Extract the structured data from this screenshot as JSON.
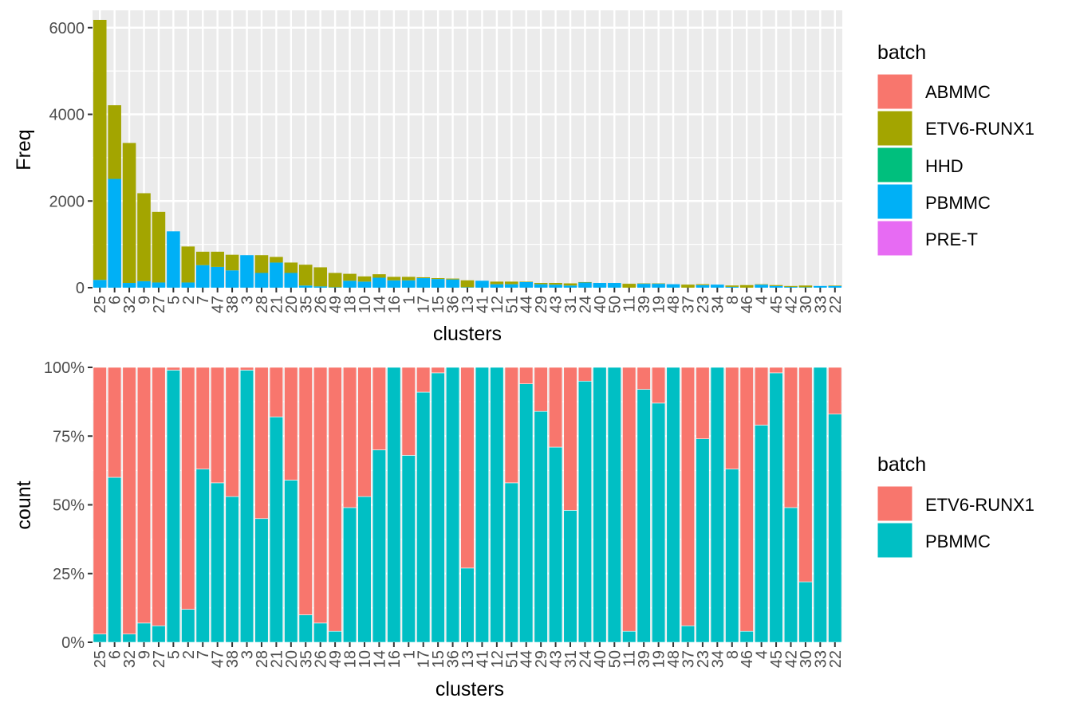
{
  "chart_data": [
    {
      "type": "bar",
      "stacked": true,
      "position": "stack",
      "xlabel": "clusters",
      "ylabel": "Freq",
      "ylim": [
        0,
        6400
      ],
      "yticks": [
        0,
        2000,
        4000,
        6000
      ],
      "yticklabels": [
        "0",
        "2000",
        "4000",
        "6000"
      ],
      "grid": true,
      "legend_placement": "right",
      "legend_title": "batch",
      "legend": [
        "ABMMC",
        "ETV6-RUNX1",
        "HHD",
        "PBMMC",
        "PRE-T"
      ],
      "colors": {
        "ABMMC": "#F8766D",
        "ETV6-RUNX1": "#A3A500",
        "HHD": "#00BF7D",
        "PBMMC": "#00B0F6",
        "PRE-T": "#E76BF3"
      },
      "categories": [
        "25",
        "6",
        "32",
        "9",
        "27",
        "5",
        "2",
        "7",
        "47",
        "38",
        "3",
        "28",
        "21",
        "20",
        "35",
        "26",
        "49",
        "18",
        "10",
        "14",
        "16",
        "1",
        "17",
        "15",
        "36",
        "13",
        "41",
        "12",
        "51",
        "44",
        "29",
        "43",
        "31",
        "24",
        "40",
        "50",
        "11",
        "39",
        "19",
        "48",
        "37",
        "23",
        "34",
        "8",
        "46",
        "4",
        "45",
        "42",
        "30",
        "33",
        "22"
      ],
      "series": [
        {
          "name": "ETV6-RUNX1",
          "values": [
            6000,
            1700,
            3230,
            2030,
            1630,
            0,
            830,
            310,
            350,
            360,
            0,
            410,
            130,
            240,
            480,
            440,
            330,
            160,
            120,
            80,
            80,
            80,
            20,
            20,
            20,
            160,
            0,
            60,
            60,
            10,
            30,
            40,
            50,
            10,
            0,
            0,
            90,
            10,
            10,
            0,
            70,
            20,
            0,
            30,
            60,
            10,
            20,
            20,
            40,
            0,
            10
          ]
        },
        {
          "name": "PBMMC",
          "values": [
            180,
            2510,
            110,
            150,
            120,
            1300,
            120,
            520,
            480,
            400,
            750,
            340,
            580,
            340,
            50,
            30,
            10,
            160,
            140,
            230,
            170,
            170,
            220,
            200,
            190,
            10,
            160,
            80,
            80,
            130,
            80,
            70,
            50,
            120,
            110,
            110,
            0,
            90,
            90,
            80,
            0,
            60,
            70,
            20,
            0,
            70,
            40,
            20,
            10,
            40,
            40
          ]
        }
      ]
    },
    {
      "type": "bar",
      "stacked": true,
      "position": "fill",
      "xlabel": "clusters",
      "ylabel": "count",
      "ylim": [
        0,
        1
      ],
      "yticks": [
        0,
        0.25,
        0.5,
        0.75,
        1
      ],
      "yticklabels": [
        "0%",
        "25%",
        "50%",
        "75%",
        "100%"
      ],
      "grid": true,
      "legend_placement": "right",
      "legend_title": "batch",
      "legend": [
        "ETV6-RUNX1",
        "PBMMC"
      ],
      "colors": {
        "ETV6-RUNX1": "#F8766D",
        "PBMMC": "#00BFC4"
      },
      "categories": [
        "25",
        "6",
        "32",
        "9",
        "27",
        "5",
        "2",
        "7",
        "47",
        "38",
        "3",
        "28",
        "21",
        "20",
        "35",
        "26",
        "49",
        "18",
        "10",
        "14",
        "16",
        "1",
        "17",
        "15",
        "36",
        "13",
        "41",
        "12",
        "51",
        "44",
        "29",
        "43",
        "31",
        "24",
        "40",
        "50",
        "11",
        "39",
        "19",
        "48",
        "37",
        "23",
        "34",
        "8",
        "46",
        "4",
        "45",
        "42",
        "30",
        "33",
        "22"
      ],
      "series": [
        {
          "name": "ETV6-RUNX1",
          "values": [
            0.97,
            0.4,
            0.97,
            0.93,
            0.94,
            0.01,
            0.88,
            0.37,
            0.42,
            0.47,
            0.01,
            0.55,
            0.18,
            0.41,
            0.9,
            0.93,
            0.96,
            0.51,
            0.47,
            0.3,
            0.0,
            0.32,
            0.09,
            0.02,
            0.0,
            0.73,
            0.0,
            0.0,
            0.42,
            0.06,
            0.16,
            0.29,
            0.52,
            0.05,
            0.0,
            0.0,
            0.96,
            0.08,
            0.13,
            0.0,
            0.94,
            0.26,
            0.0,
            0.37,
            0.96,
            0.21,
            0.02,
            0.51,
            0.78,
            0.0,
            0.17
          ]
        },
        {
          "name": "PBMMC",
          "values": [
            0.03,
            0.6,
            0.03,
            0.07,
            0.06,
            0.99,
            0.12,
            0.63,
            0.58,
            0.53,
            0.99,
            0.45,
            0.82,
            0.59,
            0.1,
            0.07,
            0.04,
            0.49,
            0.53,
            0.7,
            1.0,
            0.68,
            0.91,
            0.98,
            1.0,
            0.27,
            1.0,
            1.0,
            0.58,
            0.94,
            0.84,
            0.71,
            0.48,
            0.95,
            1.0,
            1.0,
            0.04,
            0.92,
            0.87,
            1.0,
            0.06,
            0.74,
            1.0,
            0.63,
            0.04,
            0.79,
            0.98,
            0.49,
            0.22,
            1.0,
            0.83
          ]
        }
      ]
    }
  ]
}
